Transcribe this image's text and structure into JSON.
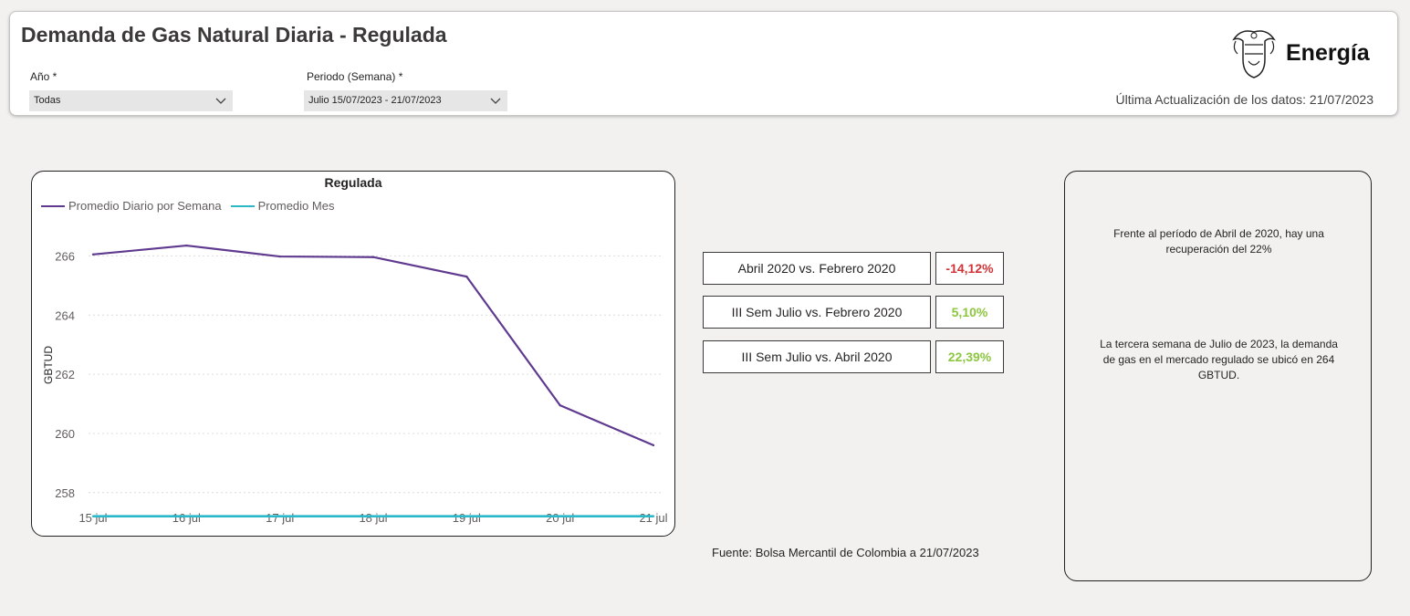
{
  "header": {
    "title": "Demanda de Gas Natural Diaria - Regulada",
    "logo_text": "Energía",
    "last_update": "Última Actualización de los datos: 21/07/2023"
  },
  "filters": {
    "year_label": "Año *",
    "year_value": "Todas",
    "period_label": "Periodo (Semana) *",
    "period_value": "Julio 15/07/2023 - 21/07/2023"
  },
  "chart_data": {
    "type": "line",
    "title": "Regulada",
    "ylabel": "GBTUD",
    "xlabel": "",
    "categories": [
      "15 jul",
      "16 jul",
      "17 jul",
      "18 jul",
      "19 jul",
      "20 jul",
      "21 jul"
    ],
    "yticks": [
      "266",
      "264",
      "262",
      "260",
      "258"
    ],
    "ylim": [
      257.5,
      267
    ],
    "grid": true,
    "legend_position": "top-left",
    "series": [
      {
        "name": "Promedio Diario por Semana",
        "color": "#5f3a8f",
        "values": [
          266.05,
          266.35,
          265.98,
          265.96,
          265.3,
          260.95,
          259.6
        ]
      },
      {
        "name": "Promedio Mes",
        "color": "#2bb9c9",
        "values": [
          257.2,
          257.2,
          257.2,
          257.2,
          257.2,
          257.2,
          257.2
        ]
      }
    ]
  },
  "kpis": [
    {
      "label": "Abril 2020 vs. Febrero 2020",
      "value": "-14,12%",
      "color": "#d13438"
    },
    {
      "label": "III Sem Julio vs. Febrero 2020",
      "value": "5,10%",
      "color": "#8dc63f"
    },
    {
      "label": "III Sem Julio vs. Abril 2020",
      "value": "22,39%",
      "color": "#8dc63f"
    }
  ],
  "source": "Fuente: Bolsa Mercantil de Colombia a 21/07/2023",
  "notes": {
    "p1": "Frente al período de Abril de 2020, hay una recuperación del 22%",
    "p2": "La tercera semana de Julio de 2023, la demanda de gas en el mercado regulado se ubicó en 264 GBTUD."
  }
}
